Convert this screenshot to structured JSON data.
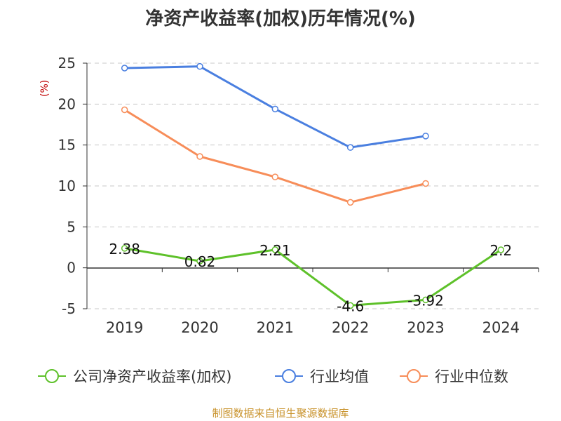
{
  "chart_data": {
    "type": "line",
    "title": "净资产收益率(加权)历年情况(%)",
    "ylabel": "(%)",
    "categories": [
      "2019",
      "2020",
      "2021",
      "2022",
      "2023",
      "2024"
    ],
    "ylim": [
      -5,
      25
    ],
    "yticks": [
      -5,
      0,
      5,
      10,
      15,
      20,
      25
    ],
    "grid": true,
    "legend_position": "bottom",
    "series": [
      {
        "name": "公司净资产收益率(加权)",
        "color": "#5ec12a",
        "values": [
          2.38,
          0.82,
          2.21,
          -4.6,
          -3.92,
          2.2
        ],
        "labels": [
          "2.38",
          "0.82",
          "2.21",
          "-4.6",
          "-3.92",
          "2.2"
        ]
      },
      {
        "name": "行业均值",
        "color": "#4a7fe0",
        "values": [
          24.4,
          24.6,
          19.4,
          14.7,
          16.1,
          null
        ]
      },
      {
        "name": "行业中位数",
        "color": "#f78d59",
        "values": [
          19.3,
          13.6,
          11.1,
          8.0,
          10.3,
          null
        ]
      }
    ]
  },
  "source": "制图数据来自恒生聚源数据库"
}
